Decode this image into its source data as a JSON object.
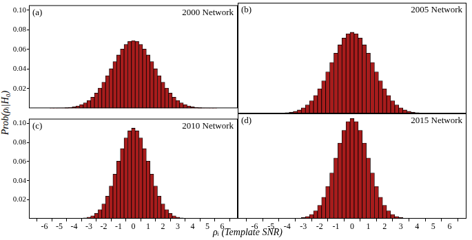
{
  "x_label": "ρᵢ (Template SNR)",
  "y_label": "Prob(ρᵢ|H₀)",
  "chart_data": [
    {
      "type": "bar",
      "title": "2000 Network",
      "annotation": "(a)",
      "color": "#a81c1c",
      "grid": false,
      "tick_labels": "y",
      "bins": [
        -6.125,
        -5.875,
        -5.625,
        -5.375,
        -5.125,
        -4.875,
        -4.625,
        -4.375,
        -4.125,
        -3.875,
        -3.625,
        -3.375,
        -3.125,
        -2.875,
        -2.625,
        -2.375,
        -2.125,
        -1.875,
        -1.625,
        -1.375,
        -1.125,
        -0.875,
        -0.625,
        -0.375,
        -0.125,
        0.125,
        0.375,
        0.625,
        0.875,
        1.125,
        1.375,
        1.625,
        1.875,
        2.125,
        2.375,
        2.625,
        2.875,
        3.125,
        3.375,
        3.625,
        3.875,
        4.125,
        4.375,
        4.625,
        4.875,
        5.125,
        5.375,
        5.625,
        5.875,
        6.125
      ],
      "values": [
        0,
        0,
        0.0001,
        0.0001,
        0.0002,
        0.0003,
        0.0005,
        0.0009,
        0.0015,
        0.0024,
        0.0037,
        0.0055,
        0.008,
        0.0113,
        0.0155,
        0.0206,
        0.0265,
        0.0332,
        0.0403,
        0.0475,
        0.0543,
        0.0603,
        0.065,
        0.068,
        0.069,
        0.068,
        0.065,
        0.0603,
        0.0543,
        0.0475,
        0.0403,
        0.0332,
        0.0265,
        0.0206,
        0.0155,
        0.0113,
        0.008,
        0.0055,
        0.0037,
        0.0024,
        0.0015,
        0.0009,
        0.0005,
        0.0003,
        0.0002,
        0.0001,
        0.0001,
        0,
        0
      ],
      "xlim": [
        -6.5,
        6.5
      ],
      "xticks": [
        -6,
        -5,
        -4,
        -3,
        -2,
        -1,
        0,
        1,
        2,
        3,
        4,
        5,
        6
      ],
      "ylim": [
        0,
        0.105
      ],
      "yticks": [
        0.02,
        0.04,
        0.06,
        0.08,
        {
          "value": 0.1,
          "label": "0.10"
        }
      ]
    },
    {
      "type": "bar",
      "title": "2005 Network",
      "annotation": "(b)",
      "color": "#a81c1c",
      "grid": false,
      "tick_labels": false,
      "bins": [
        -6.125,
        -5.875,
        -5.625,
        -5.375,
        -5.125,
        -4.875,
        -4.625,
        -4.375,
        -4.125,
        -3.875,
        -3.625,
        -3.375,
        -3.125,
        -2.875,
        -2.625,
        -2.375,
        -2.125,
        -1.875,
        -1.625,
        -1.375,
        -1.125,
        -0.875,
        -0.625,
        -0.375,
        -0.125,
        0.125,
        0.375,
        0.625,
        0.875,
        1.125,
        1.375,
        1.625,
        1.875,
        2.125,
        2.375,
        2.625,
        2.875,
        3.125,
        3.375,
        3.625,
        3.875,
        4.125,
        4.375,
        4.625,
        4.875,
        5.125,
        5.375,
        5.625,
        5.875,
        6.125
      ],
      "values": [
        0,
        0,
        0,
        0,
        0.0001,
        0.0001,
        0.0002,
        0.0004,
        0.0007,
        0.0012,
        0.002,
        0.0033,
        0.0053,
        0.0081,
        0.012,
        0.0171,
        0.0234,
        0.031,
        0.0394,
        0.0484,
        0.0572,
        0.0651,
        0.0715,
        0.0756,
        0.077,
        0.0756,
        0.0715,
        0.0651,
        0.0572,
        0.0484,
        0.0394,
        0.031,
        0.0234,
        0.0171,
        0.012,
        0.0081,
        0.0053,
        0.0033,
        0.002,
        0.0012,
        0.0007,
        0.0004,
        0.0002,
        0.0001,
        0.0001,
        0,
        0,
        0,
        0
      ],
      "xlim": [
        -6.5,
        6.5
      ],
      "xticks": [
        -6,
        -5,
        -4,
        -3,
        -2,
        -1,
        0,
        1,
        2,
        3,
        4,
        5,
        6
      ],
      "ylim": [
        0,
        0.105
      ],
      "yticks": [
        0.02,
        0.04,
        0.06,
        0.08,
        {
          "value": 0.1,
          "label": "0.10"
        }
      ]
    },
    {
      "type": "bar",
      "title": "2010 Network",
      "annotation": "(c)",
      "color": "#a81c1c",
      "grid": false,
      "tick_labels": true,
      "bins": [
        -6.125,
        -5.875,
        -5.625,
        -5.375,
        -5.125,
        -4.875,
        -4.625,
        -4.375,
        -4.125,
        -3.875,
        -3.625,
        -3.375,
        -3.125,
        -2.875,
        -2.625,
        -2.375,
        -2.125,
        -1.875,
        -1.625,
        -1.375,
        -1.125,
        -0.875,
        -0.625,
        -0.375,
        -0.125,
        0.125,
        0.375,
        0.625,
        0.875,
        1.125,
        1.375,
        1.625,
        1.875,
        2.125,
        2.375,
        2.625,
        2.875,
        3.125,
        3.375,
        3.625,
        3.875,
        4.125,
        4.375,
        4.625,
        4.875,
        5.125,
        5.375,
        5.625,
        5.875,
        6.125
      ],
      "values": [
        0,
        0,
        0,
        0,
        0,
        0,
        0,
        0,
        0.0001,
        0.0002,
        0.0004,
        0.0008,
        0.0016,
        0.0031,
        0.0056,
        0.0096,
        0.0155,
        0.0237,
        0.0342,
        0.0468,
        0.0604,
        0.0736,
        0.0848,
        0.0923,
        0.095,
        0.0923,
        0.0848,
        0.0736,
        0.0604,
        0.0468,
        0.0342,
        0.0237,
        0.0155,
        0.0096,
        0.0056,
        0.0031,
        0.0016,
        0.0008,
        0.0004,
        0.0002,
        0.0001,
        0,
        0,
        0,
        0,
        0,
        0,
        0,
        0
      ],
      "xlim": [
        -6.5,
        6.5
      ],
      "xticks": [
        -6,
        -5,
        -4,
        -3,
        -2,
        -1,
        0,
        1,
        2,
        3,
        4,
        5,
        6
      ],
      "ylim": [
        0,
        0.105
      ],
      "yticks": [
        0.02,
        0.04,
        0.06,
        0.08,
        {
          "value": 0.1,
          "label": "0.10"
        }
      ]
    },
    {
      "type": "bar",
      "title": "2015 Network",
      "annotation": "(d)",
      "color": "#a81c1c",
      "grid": false,
      "tick_labels": "x",
      "bins": [
        -6.125,
        -5.875,
        -5.625,
        -5.375,
        -5.125,
        -4.875,
        -4.625,
        -4.375,
        -4.125,
        -3.875,
        -3.625,
        -3.375,
        -3.125,
        -2.875,
        -2.625,
        -2.375,
        -2.125,
        -1.875,
        -1.625,
        -1.375,
        -1.125,
        -0.875,
        -0.625,
        -0.375,
        -0.125,
        0.125,
        0.375,
        0.625,
        0.875,
        1.125,
        1.375,
        1.625,
        1.875,
        2.125,
        2.375,
        2.625,
        2.875,
        3.125,
        3.375,
        3.625,
        3.875,
        4.125,
        4.375,
        4.625,
        4.875,
        5.125,
        5.375,
        5.625,
        5.875,
        6.125
      ],
      "values": [
        0,
        0,
        0,
        0,
        0,
        0,
        0,
        0,
        0,
        0.0001,
        0.0002,
        0.0005,
        0.0011,
        0.0022,
        0.0043,
        0.0078,
        0.0134,
        0.0214,
        0.0322,
        0.0456,
        0.0605,
        0.0754,
        0.0882,
        0.0969,
        0.1,
        0.0969,
        0.0882,
        0.0754,
        0.0605,
        0.0456,
        0.0322,
        0.0214,
        0.0134,
        0.0078,
        0.0043,
        0.0022,
        0.0011,
        0.0005,
        0.0002,
        0.0001,
        0,
        0,
        0,
        0,
        0,
        0,
        0,
        0,
        0
      ],
      "xlim": [
        -6.5,
        6.5
      ],
      "xticks": [
        -6,
        -5,
        -4,
        -3,
        -2,
        -1,
        0,
        1,
        2,
        3,
        4,
        5,
        6
      ],
      "ylim": [
        0,
        0.105
      ],
      "yticks": [
        0.02,
        0.04,
        0.06,
        0.08,
        {
          "value": 0.1,
          "label": "0.10"
        }
      ]
    }
  ]
}
